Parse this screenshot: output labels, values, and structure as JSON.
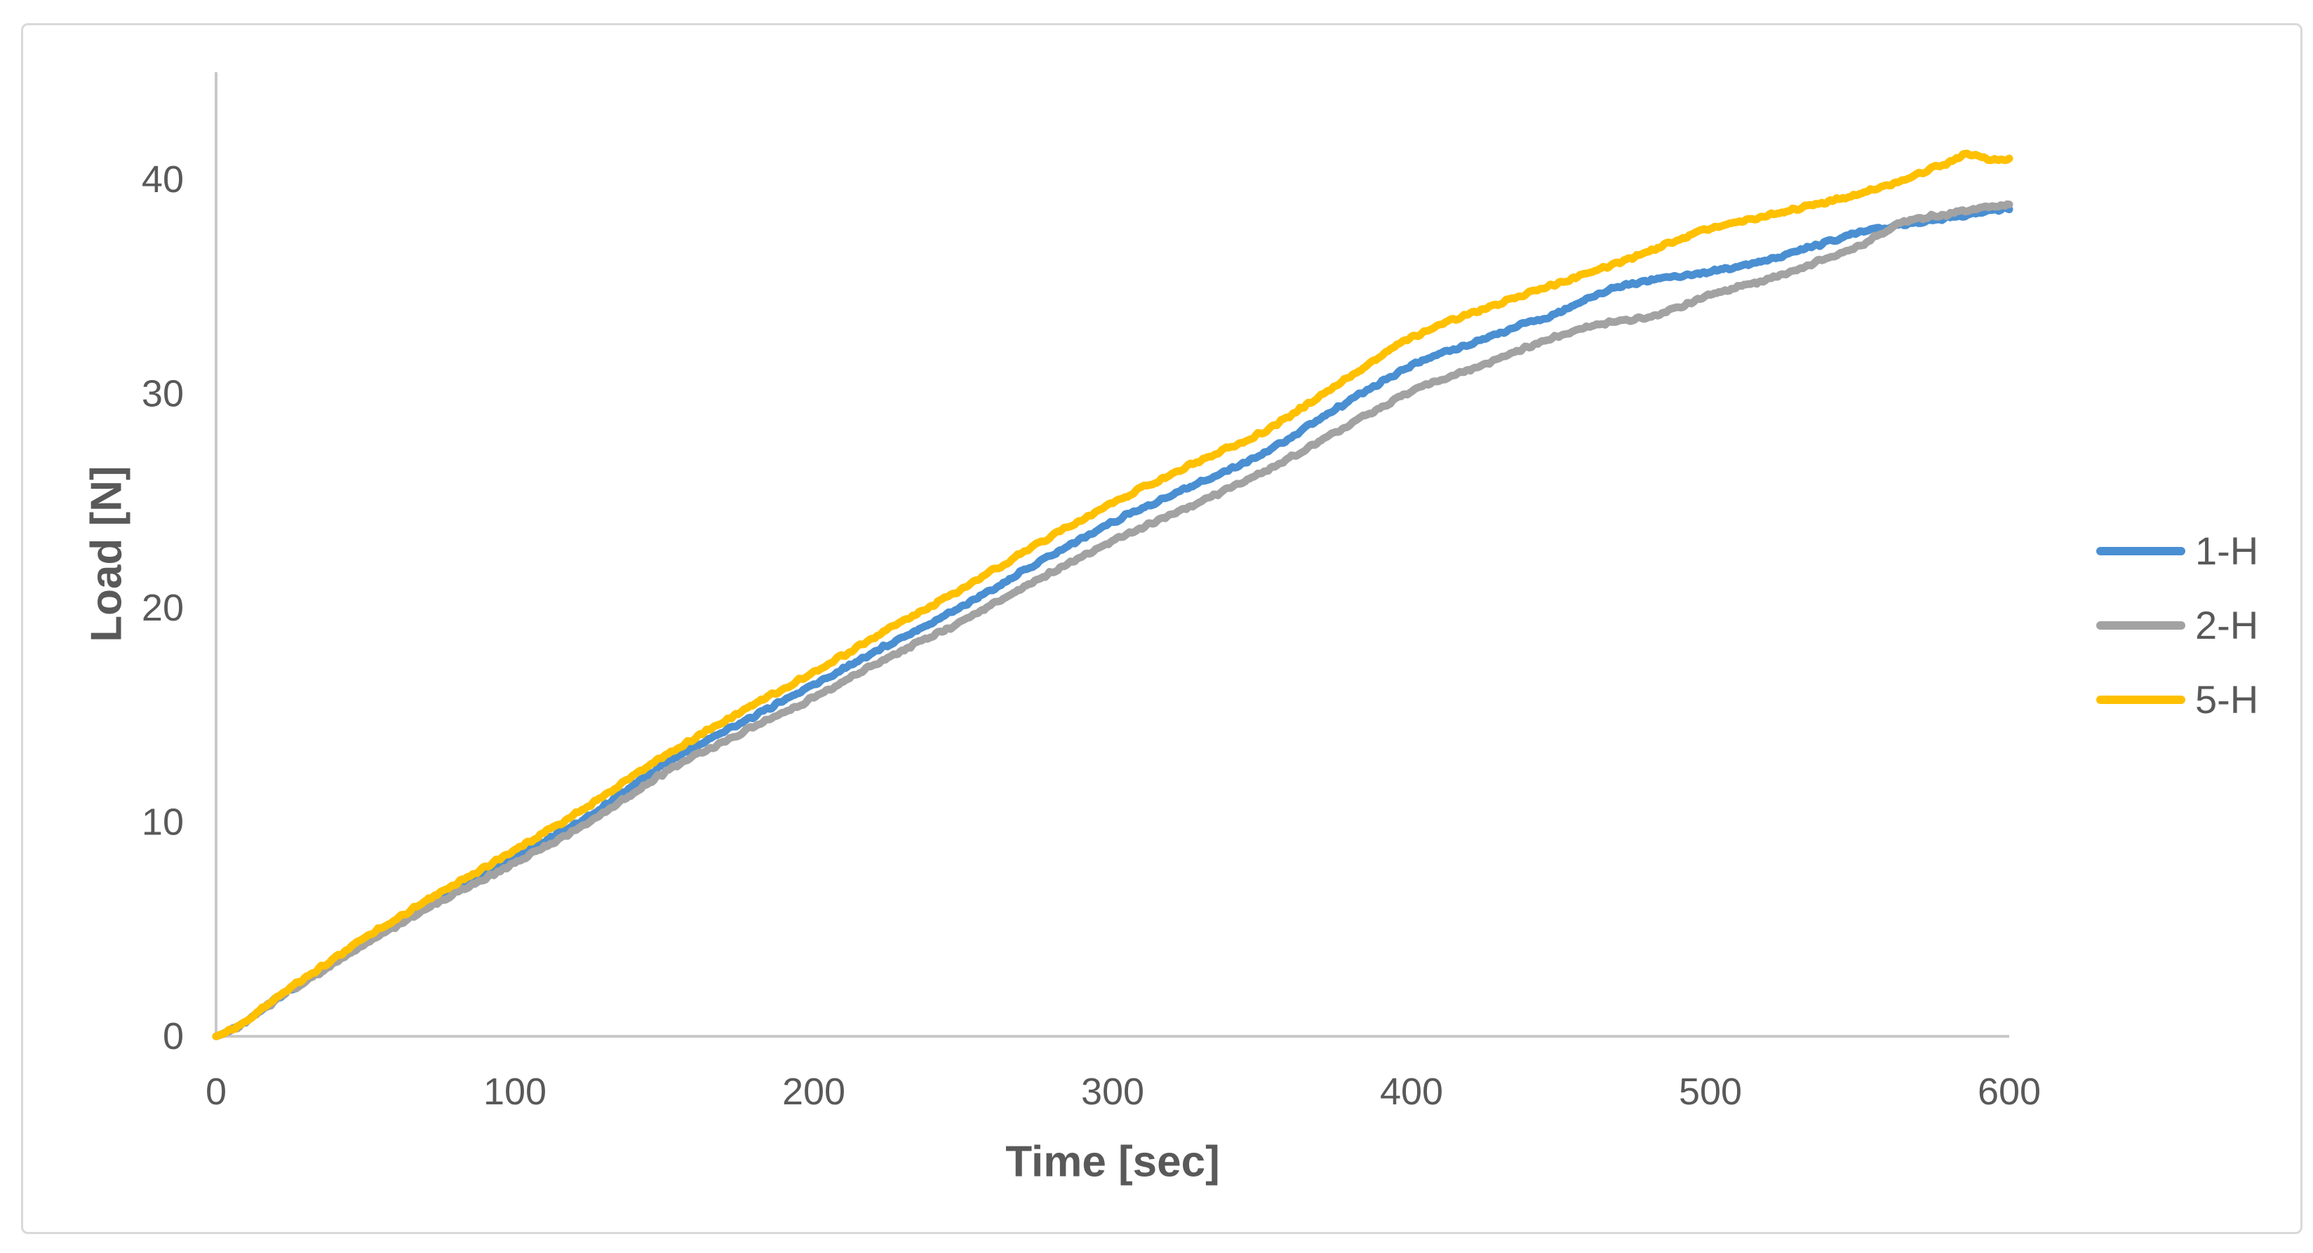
{
  "figure": {
    "background": "#ffffff",
    "frame_color": "#d9d9d9"
  },
  "chart_data": {
    "type": "line",
    "title": "",
    "xlabel": "Time [sec]",
    "ylabel": "Load [N]",
    "xlim": [
      0,
      600
    ],
    "ylim": [
      0,
      45
    ],
    "x_ticks": [
      0,
      100,
      200,
      300,
      400,
      500,
      600
    ],
    "y_ticks": [
      0,
      10,
      20,
      30,
      40
    ],
    "grid": false,
    "legend_position": "right-middle",
    "axis_line_color": "#c8c8c8",
    "tick_text_color": "#595959",
    "series": [
      {
        "name": "1-H",
        "color": "#4a8fd2",
        "points": [
          [
            0,
            0
          ],
          [
            25,
            2.2
          ],
          [
            50,
            4.4
          ],
          [
            75,
            6.5
          ],
          [
            100,
            8.4
          ],
          [
            125,
            10.3
          ],
          [
            150,
            12.7
          ],
          [
            175,
            14.6
          ],
          [
            200,
            16.4
          ],
          [
            225,
            18.3
          ],
          [
            250,
            20.1
          ],
          [
            275,
            22.1
          ],
          [
            300,
            24.0
          ],
          [
            325,
            25.6
          ],
          [
            350,
            27.2
          ],
          [
            375,
            29.3
          ],
          [
            400,
            31.3
          ],
          [
            425,
            32.6
          ],
          [
            450,
            33.8
          ],
          [
            465,
            34.8
          ],
          [
            480,
            35.3
          ],
          [
            500,
            35.7
          ],
          [
            515,
            36.1
          ],
          [
            530,
            36.7
          ],
          [
            550,
            37.5
          ],
          [
            565,
            37.9
          ],
          [
            585,
            38.3
          ],
          [
            600,
            38.65
          ]
        ]
      },
      {
        "name": "2-H",
        "color": "#a2a2a2",
        "points": [
          [
            0,
            0
          ],
          [
            25,
            2.15
          ],
          [
            50,
            4.3
          ],
          [
            75,
            6.3
          ],
          [
            100,
            8.1
          ],
          [
            125,
            10.0
          ],
          [
            150,
            12.3
          ],
          [
            175,
            14.1
          ],
          [
            200,
            15.8
          ],
          [
            225,
            17.7
          ],
          [
            250,
            19.4
          ],
          [
            275,
            21.3
          ],
          [
            300,
            23.1
          ],
          [
            325,
            24.7
          ],
          [
            350,
            26.3
          ],
          [
            375,
            28.2
          ],
          [
            400,
            30.1
          ],
          [
            425,
            31.4
          ],
          [
            450,
            32.7
          ],
          [
            465,
            33.3
          ],
          [
            480,
            33.6
          ],
          [
            500,
            34.6
          ],
          [
            525,
            35.6
          ],
          [
            550,
            36.9
          ],
          [
            565,
            38.0
          ],
          [
            580,
            38.4
          ],
          [
            600,
            38.8
          ]
        ]
      },
      {
        "name": "5-H",
        "color": "#ffc000",
        "points": [
          [
            0,
            0
          ],
          [
            25,
            2.3
          ],
          [
            50,
            4.6
          ],
          [
            75,
            6.7
          ],
          [
            100,
            8.7
          ],
          [
            125,
            10.8
          ],
          [
            150,
            13.1
          ],
          [
            175,
            15.1
          ],
          [
            200,
            17.0
          ],
          [
            225,
            19.0
          ],
          [
            250,
            20.9
          ],
          [
            275,
            23.0
          ],
          [
            300,
            24.9
          ],
          [
            325,
            26.6
          ],
          [
            350,
            28.2
          ],
          [
            375,
            30.4
          ],
          [
            400,
            32.6
          ],
          [
            425,
            34.0
          ],
          [
            450,
            35.2
          ],
          [
            475,
            36.4
          ],
          [
            500,
            37.7
          ],
          [
            525,
            38.5
          ],
          [
            550,
            39.3
          ],
          [
            565,
            40.0
          ],
          [
            580,
            40.8
          ],
          [
            588,
            41.2
          ],
          [
            594,
            40.9
          ],
          [
            600,
            41.0
          ]
        ]
      }
    ]
  }
}
